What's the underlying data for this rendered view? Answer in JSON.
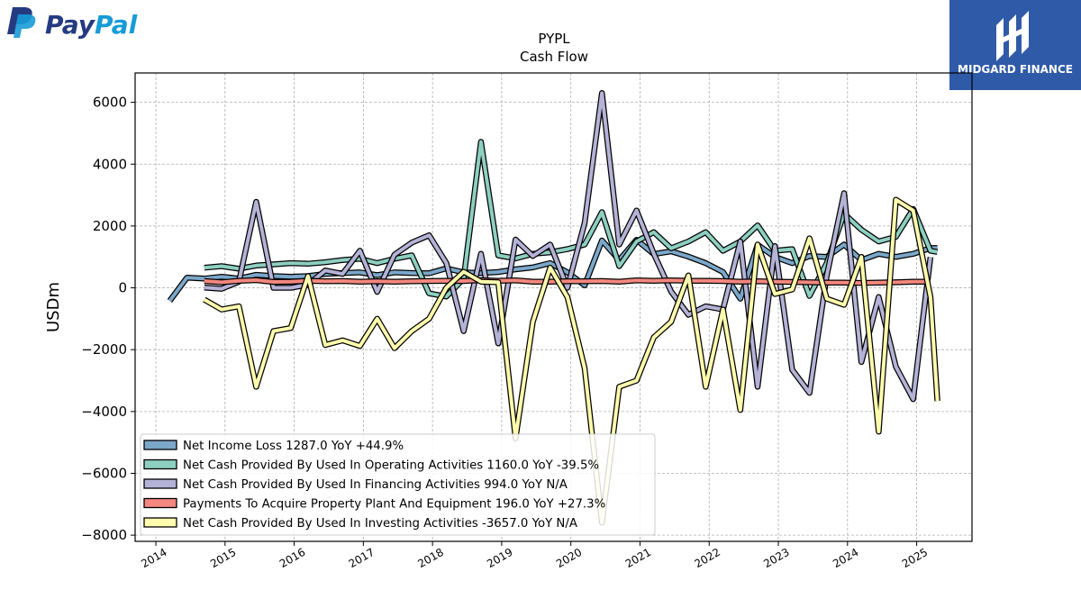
{
  "logo": {
    "text": "PayPal",
    "colors": {
      "dark": "#253b80",
      "light": "#179bd7"
    }
  },
  "badge": {
    "text": "MIDGARD FINANCE",
    "color": "#2f5aa8"
  },
  "chart_data": {
    "type": "line",
    "title": "PYPL",
    "subtitle": "Cash Flow",
    "ylabel": "USDm",
    "xlabel": "",
    "ylim": [
      -8200,
      6950
    ],
    "xlim": [
      2013.7,
      2025.8
    ],
    "yticks": [
      -8000,
      -6000,
      -4000,
      -2000,
      0,
      2000,
      4000,
      6000
    ],
    "xticks": [
      2014,
      2015,
      2016,
      2017,
      2018,
      2019,
      2020,
      2021,
      2022,
      2023,
      2024,
      2025
    ],
    "grid": true,
    "legend_position": "lower-left",
    "series": [
      {
        "name": "Net Income Loss",
        "legend_label": "Net Income Loss  1287.0 YoY +44.9%",
        "color": "#7ba7c9",
        "x": [
          2014.2,
          2014.45,
          2014.7,
          2014.95,
          2015.2,
          2015.45,
          2015.7,
          2015.95,
          2016.2,
          2016.45,
          2016.7,
          2016.95,
          2017.2,
          2017.45,
          2017.7,
          2017.95,
          2018.2,
          2018.45,
          2018.7,
          2018.95,
          2019.2,
          2019.45,
          2019.7,
          2019.95,
          2020.2,
          2020.45,
          2020.7,
          2020.95,
          2021.2,
          2021.45,
          2021.7,
          2021.95,
          2022.2,
          2022.45,
          2022.7,
          2022.95,
          2023.2,
          2023.45,
          2023.7,
          2023.95,
          2024.2,
          2024.45,
          2024.7,
          2024.95,
          2025.2,
          2025.3
        ],
        "y": [
          -420,
          330,
          300,
          360,
          300,
          420,
          380,
          360,
          380,
          450,
          480,
          500,
          410,
          500,
          480,
          470,
          630,
          500,
          480,
          510,
          600,
          660,
          800,
          500,
          80,
          1530,
          900,
          1550,
          1090,
          1180,
          1010,
          800,
          510,
          -350,
          1390,
          1000,
          800,
          1030,
          1000,
          1400,
          900,
          1100,
          1000,
          1100,
          1287,
          1287
        ]
      },
      {
        "name": "Net Cash Provided By Used In Operating Activities",
        "legend_label": "Net Cash Provided By Used In Operating Activities  1160.0 YoY -39.5%",
        "color": "#8dcfc0",
        "x": [
          2014.7,
          2014.95,
          2015.2,
          2015.45,
          2015.7,
          2015.95,
          2016.2,
          2016.45,
          2016.7,
          2016.95,
          2017.2,
          2017.45,
          2017.7,
          2017.95,
          2018.2,
          2018.45,
          2018.7,
          2018.95,
          2019.2,
          2019.45,
          2019.7,
          2019.95,
          2020.2,
          2020.45,
          2020.7,
          2020.95,
          2021.2,
          2021.45,
          2021.7,
          2021.95,
          2022.2,
          2022.45,
          2022.7,
          2022.95,
          2023.2,
          2023.45,
          2023.7,
          2023.95,
          2024.2,
          2024.45,
          2024.7,
          2024.95,
          2025.2,
          2025.3
        ],
        "y": [
          650,
          700,
          620,
          720,
          760,
          800,
          780,
          830,
          900,
          940,
          800,
          940,
          1050,
          -180,
          -280,
          300,
          4720,
          1050,
          950,
          1100,
          1150,
          1250,
          1400,
          2450,
          700,
          1500,
          1800,
          1280,
          1500,
          1800,
          1200,
          1500,
          2020,
          1200,
          1250,
          -260,
          800,
          2400,
          1880,
          1500,
          1650,
          2550,
          1200,
          1160
        ]
      },
      {
        "name": "Net Cash Provided By Used In Financing Activities",
        "legend_label": "Net Cash Provided By Used In Financing Activities  994.0 YoY N/A",
        "color": "#b4b2d6",
        "x": [
          2014.7,
          2014.95,
          2015.2,
          2015.45,
          2015.7,
          2015.95,
          2016.2,
          2016.45,
          2016.7,
          2016.95,
          2017.2,
          2017.45,
          2017.7,
          2017.95,
          2018.2,
          2018.45,
          2018.7,
          2018.95,
          2019.2,
          2019.45,
          2019.7,
          2019.95,
          2020.2,
          2020.45,
          2020.7,
          2020.95,
          2021.2,
          2021.45,
          2021.7,
          2021.95,
          2022.2,
          2022.45,
          2022.7,
          2022.95,
          2023.2,
          2023.45,
          2023.7,
          2023.95,
          2024.2,
          2024.45,
          2024.7,
          2024.95,
          2025.2
        ],
        "y": [
          10,
          -30,
          200,
          2780,
          0,
          0,
          100,
          560,
          450,
          1200,
          -130,
          1070,
          1460,
          1700,
          800,
          -1400,
          1100,
          -1800,
          1560,
          1030,
          1400,
          0,
          2100,
          6300,
          1400,
          2500,
          1100,
          -120,
          -870,
          -600,
          -700,
          1500,
          -3200,
          1350,
          -2650,
          -3400,
          400,
          3060,
          -2400,
          -300,
          -2550,
          -3600,
          994
        ]
      },
      {
        "name": "Payments To Acquire Property Plant And Equipment",
        "legend_label": "Payments To Acquire Property Plant And Equipment  196.0 YoY +27.3%",
        "color": "#f4877f",
        "x": [
          2014.7,
          2014.95,
          2015.2,
          2015.45,
          2015.7,
          2015.95,
          2016.2,
          2016.45,
          2016.7,
          2016.95,
          2017.2,
          2017.45,
          2017.7,
          2017.95,
          2018.2,
          2018.45,
          2018.7,
          2018.95,
          2019.2,
          2019.45,
          2019.7,
          2019.95,
          2020.2,
          2020.45,
          2020.7,
          2020.95,
          2021.2,
          2021.45,
          2021.7,
          2021.95,
          2022.2,
          2022.45,
          2022.7,
          2022.95,
          2023.2,
          2023.45,
          2023.7,
          2023.95,
          2024.2,
          2024.45,
          2024.7,
          2024.95,
          2025.2
        ],
        "y": [
          220,
          180,
          230,
          250,
          190,
          200,
          230,
          210,
          220,
          200,
          210,
          200,
          210,
          220,
          230,
          220,
          250,
          230,
          240,
          200,
          200,
          210,
          210,
          220,
          200,
          240,
          230,
          240,
          230,
          230,
          220,
          200,
          210,
          200,
          190,
          180,
          170,
          170,
          160,
          170,
          180,
          200,
          196
        ]
      },
      {
        "name": "Net Cash Provided By Used In Investing Activities",
        "legend_label": "Net Cash Provided By Used In Investing Activities  -3657.0 YoY N/A",
        "color": "#fffcad",
        "x": [
          2014.7,
          2014.95,
          2015.2,
          2015.45,
          2015.7,
          2015.95,
          2016.2,
          2016.45,
          2016.7,
          2016.95,
          2017.2,
          2017.45,
          2017.7,
          2017.95,
          2018.2,
          2018.45,
          2018.7,
          2018.95,
          2019.2,
          2019.45,
          2019.7,
          2019.95,
          2020.2,
          2020.45,
          2020.7,
          2020.95,
          2021.2,
          2021.45,
          2021.7,
          2021.95,
          2022.2,
          2022.45,
          2022.7,
          2022.95,
          2023.2,
          2023.45,
          2023.7,
          2023.95,
          2024.2,
          2024.45,
          2024.7,
          2024.95,
          2025.2,
          2025.3
        ],
        "y": [
          -380,
          -700,
          -600,
          -3200,
          -1400,
          -1300,
          380,
          -1850,
          -1700,
          -1880,
          -1000,
          -1950,
          -1400,
          -1000,
          0,
          520,
          200,
          180,
          -4870,
          -1100,
          650,
          -300,
          -2600,
          -7600,
          -3200,
          -3000,
          -1600,
          -1100,
          400,
          -3200,
          -700,
          -3950,
          1400,
          -200,
          -50,
          1600,
          -350,
          -550,
          1000,
          -4650,
          2850,
          2500,
          -300,
          -3657
        ]
      }
    ]
  }
}
